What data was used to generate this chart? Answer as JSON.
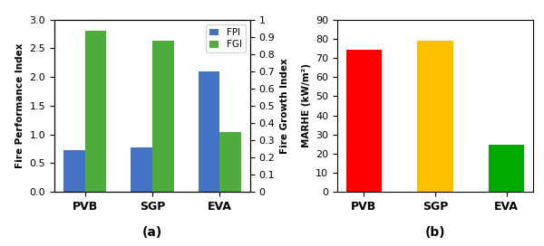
{
  "categories": [
    "PVB",
    "SGP",
    "EVA"
  ],
  "fpi_values": [
    0.72,
    0.78,
    2.1
  ],
  "fgi_values": [
    2.8,
    2.63,
    1.05
  ],
  "fpi_color": "#4472C4",
  "fgi_color": "#4EAC3D",
  "marhe_values": [
    74.5,
    79.0,
    24.5
  ],
  "marhe_colors": [
    "#FF0000",
    "#FFC000",
    "#00AA00"
  ],
  "left_ylim": [
    0,
    3
  ],
  "left_yticks": [
    0,
    0.5,
    1.0,
    1.5,
    2.0,
    2.5,
    3.0
  ],
  "right_ylim": [
    0,
    1.0
  ],
  "right_yticks": [
    0,
    0.1,
    0.2,
    0.3,
    0.4,
    0.5,
    0.6,
    0.7,
    0.8,
    0.9,
    1
  ],
  "marhe_ylim": [
    0,
    90
  ],
  "marhe_yticks": [
    0,
    10,
    20,
    30,
    40,
    50,
    60,
    70,
    80,
    90
  ],
  "left_ylabel": "Fire Performance Index",
  "right_ylabel": "Fire Growth Index",
  "marhe_ylabel": "MARHE (kW/m²)",
  "label_a": "(a)",
  "label_b": "(b)",
  "legend_labels": [
    "FPI",
    "FGI"
  ],
  "bar_width": 0.32
}
